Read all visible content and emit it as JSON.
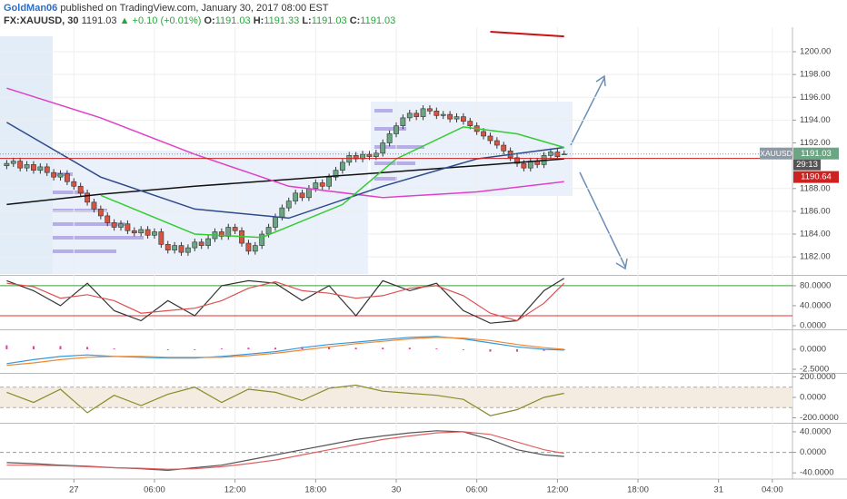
{
  "header": {
    "user": "GoldMan06",
    "published": "published on TradingView.com, January 30, 2017 08:00 EST",
    "symbol": "FX:XAUUSD, 30",
    "last": "1191.03",
    "change": "▲ +0.10 (+0.01%)",
    "ohlc": [
      {
        "key": "O:",
        "value": "1191.03"
      },
      {
        "key": "H:",
        "value": "1191.33"
      },
      {
        "key": "L:",
        "value": "1191.03"
      },
      {
        "key": "C:",
        "value": "1191.03"
      }
    ]
  },
  "chart_data": [
    {
      "type": "candlestick",
      "up_color": "#6ba583",
      "down_color": "#d75442",
      "grid": true,
      "xlim": [
        -1,
        117
      ],
      "ylim": [
        1180.5,
        1202.15
      ],
      "xticks": [
        {
          "value": 10,
          "label": "27"
        },
        {
          "value": 22,
          "label": "06:00"
        },
        {
          "value": 34,
          "label": "12:00"
        },
        {
          "value": 46,
          "label": "18:00"
        },
        {
          "value": 58,
          "label": "30"
        },
        {
          "value": 70,
          "label": "06:00"
        },
        {
          "value": 82,
          "label": "12:00"
        },
        {
          "value": 94,
          "label": "18:00"
        },
        {
          "value": 106,
          "label": "31"
        },
        {
          "value": 114,
          "label": "04:00"
        }
      ],
      "yticks": [
        {
          "value": 1182,
          "label": "1182.00"
        },
        {
          "value": 1184,
          "label": "1184.00"
        },
        {
          "value": 1186,
          "label": "1186.00"
        },
        {
          "value": 1188,
          "label": "1188.00"
        },
        {
          "value": 1192,
          "label": "1192.00"
        },
        {
          "value": 1194,
          "label": "1194.00"
        },
        {
          "value": 1196,
          "label": "1196.00"
        },
        {
          "value": 1198,
          "label": "1198.00"
        },
        {
          "value": 1200,
          "label": "1200.00"
        }
      ],
      "open": [
        1190.0,
        1190.2,
        1190.4,
        1189.8,
        1190.1,
        1189.6,
        1189.9,
        1189.4,
        1189.0,
        1189.3,
        1188.6,
        1188.2,
        1187.6,
        1186.8,
        1186.2,
        1185.6,
        1185.0,
        1184.6,
        1184.9,
        1184.3,
        1184.1,
        1184.4,
        1183.9,
        1184.2,
        1183.1,
        1182.6,
        1183.0,
        1182.4,
        1182.8,
        1183.3,
        1183.0,
        1183.6,
        1184.2,
        1183.8,
        1184.6,
        1184.3,
        1183.2,
        1182.5,
        1183.0,
        1184.0,
        1184.6,
        1185.5,
        1186.3,
        1186.9,
        1187.6,
        1187.2,
        1188.0,
        1188.5,
        1188.2,
        1189.0,
        1189.6,
        1190.3,
        1190.9,
        1190.6,
        1191.0,
        1190.8,
        1191.1,
        1192.0,
        1192.8,
        1193.5,
        1194.2,
        1194.6,
        1194.3,
        1195.0,
        1194.8,
        1194.4,
        1194.5,
        1194.1,
        1194.3,
        1193.9,
        1193.5,
        1193.0,
        1192.6,
        1192.2,
        1191.8,
        1191.3,
        1190.7,
        1190.2,
        1189.8,
        1190.4,
        1190.1,
        1190.9,
        1191.2,
        1191.03
      ],
      "high": [
        1190.5,
        1190.7,
        1190.7,
        1190.4,
        1190.4,
        1190.2,
        1190.2,
        1189.7,
        1189.6,
        1189.6,
        1188.9,
        1188.5,
        1187.9,
        1187.1,
        1186.5,
        1185.9,
        1185.3,
        1185.2,
        1185.2,
        1184.6,
        1184.7,
        1184.7,
        1184.5,
        1184.5,
        1183.4,
        1183.3,
        1183.3,
        1183.1,
        1183.6,
        1183.6,
        1183.9,
        1184.5,
        1184.5,
        1184.9,
        1184.9,
        1184.6,
        1183.5,
        1183.3,
        1184.3,
        1184.9,
        1185.8,
        1186.6,
        1187.2,
        1187.9,
        1187.9,
        1188.3,
        1188.8,
        1188.8,
        1189.3,
        1189.9,
        1190.6,
        1191.2,
        1191.2,
        1191.3,
        1191.3,
        1191.4,
        1192.3,
        1193.1,
        1193.8,
        1194.5,
        1194.9,
        1194.9,
        1195.3,
        1195.3,
        1195.1,
        1194.8,
        1194.8,
        1194.6,
        1194.6,
        1194.2,
        1193.8,
        1193.3,
        1192.9,
        1192.5,
        1192.1,
        1191.6,
        1191.0,
        1190.5,
        1190.7,
        1190.7,
        1191.2,
        1191.5,
        1191.5,
        1191.33
      ],
      "low": [
        1189.7,
        1189.9,
        1189.5,
        1189.5,
        1189.3,
        1189.3,
        1189.1,
        1188.7,
        1188.7,
        1188.3,
        1187.9,
        1187.3,
        1186.5,
        1185.9,
        1185.3,
        1184.7,
        1184.3,
        1184.3,
        1184.0,
        1183.8,
        1183.8,
        1183.6,
        1183.6,
        1182.8,
        1182.3,
        1182.3,
        1182.1,
        1182.1,
        1182.5,
        1182.7,
        1182.7,
        1183.3,
        1183.5,
        1183.5,
        1184.0,
        1182.9,
        1182.2,
        1182.2,
        1182.7,
        1183.7,
        1184.3,
        1185.2,
        1186.0,
        1186.6,
        1186.9,
        1186.9,
        1187.7,
        1187.9,
        1187.9,
        1188.7,
        1189.3,
        1190.0,
        1190.3,
        1190.3,
        1190.5,
        1190.5,
        1190.8,
        1191.7,
        1192.5,
        1193.2,
        1193.9,
        1194.0,
        1194.0,
        1194.5,
        1194.1,
        1194.1,
        1193.8,
        1193.8,
        1193.6,
        1193.2,
        1192.7,
        1192.3,
        1191.9,
        1191.5,
        1191.0,
        1190.4,
        1189.9,
        1189.5,
        1189.5,
        1189.8,
        1189.8,
        1190.6,
        1190.5,
        1191.03
      ],
      "close": [
        1190.2,
        1190.4,
        1189.8,
        1190.1,
        1189.6,
        1189.9,
        1189.4,
        1189.0,
        1189.3,
        1188.6,
        1188.2,
        1187.6,
        1186.8,
        1186.2,
        1185.6,
        1185.0,
        1184.6,
        1184.9,
        1184.3,
        1184.1,
        1184.4,
        1183.9,
        1184.2,
        1183.1,
        1182.6,
        1183.0,
        1182.4,
        1182.8,
        1183.3,
        1183.0,
        1183.6,
        1184.2,
        1183.8,
        1184.6,
        1184.3,
        1183.2,
        1182.5,
        1183.0,
        1184.0,
        1184.6,
        1185.5,
        1186.3,
        1186.9,
        1187.6,
        1187.2,
        1188.0,
        1188.5,
        1188.2,
        1189.0,
        1189.6,
        1190.3,
        1190.9,
        1190.6,
        1191.0,
        1190.8,
        1191.1,
        1192.0,
        1192.8,
        1193.5,
        1194.2,
        1194.6,
        1194.3,
        1195.0,
        1194.8,
        1194.4,
        1194.5,
        1194.1,
        1194.3,
        1193.9,
        1193.5,
        1193.0,
        1192.6,
        1192.2,
        1191.8,
        1191.3,
        1190.7,
        1190.2,
        1189.8,
        1190.4,
        1190.1,
        1190.9,
        1191.2,
        1190.8,
        1191.03
      ],
      "overlays": [
        {
          "color": "#111111",
          "x": [
            0,
            14,
            28,
            42,
            56,
            70,
            83
          ],
          "values": [
            1186.6,
            1187.5,
            1188.2,
            1188.8,
            1189.4,
            1190.0,
            1190.6
          ]
        },
        {
          "color": "#e040c8",
          "x": [
            0,
            14,
            28,
            42,
            56,
            70,
            83
          ],
          "values": [
            1196.8,
            1194.2,
            1191.0,
            1188.2,
            1187.2,
            1187.7,
            1188.6
          ]
        },
        {
          "color": "#2c4a8c",
          "x": [
            0,
            14,
            28,
            42,
            56,
            70,
            83
          ],
          "values": [
            1193.8,
            1189.0,
            1186.2,
            1185.4,
            1188.2,
            1190.6,
            1191.6
          ]
        },
        {
          "color": "#33cc33",
          "x": [
            14,
            28,
            38,
            50,
            58,
            68,
            76,
            83
          ],
          "values": [
            1187.4,
            1184.0,
            1183.7,
            1186.6,
            1190.6,
            1193.4,
            1192.8,
            1191.6
          ]
        },
        {
          "color": "#cc1111",
          "x": [
            72,
            83
          ],
          "values": [
            1201.75,
            1201.35
          ]
        }
      ],
      "symbol_tag": "XAUUSD",
      "last_price": 1191.03,
      "countdown": "29:13",
      "ma_price": 1190.64
    },
    {
      "type": "line",
      "xlim": [
        -1,
        117
      ],
      "ylim": [
        -5.5,
        98
      ],
      "yticks": [
        {
          "value": 0,
          "label": "0.0000"
        },
        {
          "value": 40,
          "label": "40.0000"
        },
        {
          "value": 80,
          "label": "80.0000"
        }
      ],
      "hlines": [
        {
          "value": 80,
          "color": "#3c9a3c"
        },
        {
          "value": 20,
          "color": "#e03030"
        }
      ],
      "x": [
        0,
        4,
        8,
        12,
        16,
        20,
        24,
        28,
        32,
        36,
        40,
        44,
        48,
        52,
        56,
        60,
        64,
        68,
        72,
        76,
        80,
        83
      ],
      "series": [
        {
          "color": "#333333",
          "values": [
            90,
            70,
            40,
            85,
            30,
            10,
            50,
            20,
            80,
            90,
            85,
            50,
            80,
            20,
            90,
            70,
            85,
            30,
            5,
            10,
            70,
            95
          ]
        },
        {
          "color": "#e05050",
          "values": [
            85,
            78,
            55,
            62,
            50,
            25,
            30,
            35,
            50,
            75,
            88,
            70,
            65,
            55,
            60,
            75,
            80,
            60,
            25,
            10,
            45,
            85
          ]
        }
      ]
    },
    {
      "type": "line",
      "xlim": [
        -1,
        117
      ],
      "ylim": [
        -2.84,
        2.27
      ],
      "yticks": [
        {
          "value": -2.5,
          "label": "-2.5000"
        },
        {
          "value": 0,
          "label": "0.0000"
        }
      ],
      "x": [
        0,
        4,
        8,
        12,
        16,
        20,
        24,
        28,
        32,
        36,
        40,
        44,
        48,
        52,
        56,
        60,
        64,
        68,
        72,
        76,
        80,
        83
      ],
      "series": [
        {
          "color": "#e040a0",
          "style": "bars",
          "values": [
            0.5,
            0.4,
            0.4,
            0.3,
            0.1,
            0.0,
            -0.1,
            -0.1,
            0.1,
            0.2,
            0.2,
            0.3,
            0.3,
            0.2,
            0.2,
            0.2,
            0.1,
            -0.1,
            -0.3,
            -0.3,
            -0.2,
            -0.1
          ]
        },
        {
          "color": "#3399dd",
          "values": [
            -1.8,
            -1.3,
            -0.9,
            -0.7,
            -0.9,
            -1.0,
            -1.1,
            -1.1,
            -0.9,
            -0.6,
            -0.3,
            0.2,
            0.6,
            0.9,
            1.2,
            1.5,
            1.6,
            1.3,
            0.8,
            0.3,
            0.0,
            -0.1
          ]
        },
        {
          "color": "#ee8833",
          "values": [
            -2.0,
            -1.7,
            -1.3,
            -1.0,
            -0.9,
            -0.9,
            -1.0,
            -1.0,
            -1.0,
            -0.8,
            -0.5,
            -0.1,
            0.3,
            0.7,
            1.0,
            1.3,
            1.5,
            1.4,
            1.1,
            0.6,
            0.2,
            0.0
          ]
        }
      ]
    },
    {
      "type": "line",
      "xlim": [
        -1,
        117
      ],
      "ylim": [
        -240,
        222
      ],
      "yticks": [
        {
          "value": -200,
          "label": "-200.0000"
        },
        {
          "value": 0,
          "label": "0.0000"
        },
        {
          "value": 200,
          "label": "200.0000"
        }
      ],
      "band": {
        "from": -100,
        "to": 100,
        "color": "#f4ece0"
      },
      "x": [
        0,
        4,
        8,
        12,
        16,
        20,
        24,
        28,
        32,
        36,
        40,
        44,
        48,
        52,
        56,
        60,
        64,
        68,
        72,
        76,
        80,
        83
      ],
      "series": [
        {
          "color": "#8a8a2a",
          "values": [
            50,
            -50,
            80,
            -150,
            20,
            -80,
            30,
            100,
            -50,
            80,
            50,
            -30,
            90,
            120,
            60,
            40,
            20,
            -20,
            -180,
            -120,
            0,
            40
          ]
        }
      ]
    },
    {
      "type": "line",
      "xlim": [
        -1,
        117
      ],
      "ylim": [
        -52,
        54
      ],
      "yticks": [
        {
          "value": -40,
          "label": "-40.0000"
        },
        {
          "value": 0,
          "label": "0.0000"
        },
        {
          "value": 40,
          "label": "40.0000"
        }
      ],
      "hlines": [
        {
          "value": 0,
          "color": "#999999",
          "dash": true
        }
      ],
      "x": [
        0,
        4,
        8,
        12,
        16,
        20,
        24,
        28,
        32,
        36,
        40,
        44,
        48,
        52,
        56,
        60,
        64,
        68,
        72,
        76,
        80,
        83
      ],
      "series": [
        {
          "color": "#555555",
          "values": [
            -20,
            -22,
            -25,
            -27,
            -30,
            -32,
            -35,
            -30,
            -25,
            -15,
            -5,
            5,
            15,
            25,
            32,
            38,
            42,
            40,
            25,
            5,
            -5,
            -8
          ]
        },
        {
          "color": "#e06060",
          "values": [
            -25,
            -25,
            -26,
            -28,
            -30,
            -31,
            -33,
            -32,
            -28,
            -22,
            -15,
            -5,
            5,
            15,
            25,
            32,
            38,
            40,
            35,
            20,
            5,
            -2
          ]
        }
      ]
    }
  ]
}
